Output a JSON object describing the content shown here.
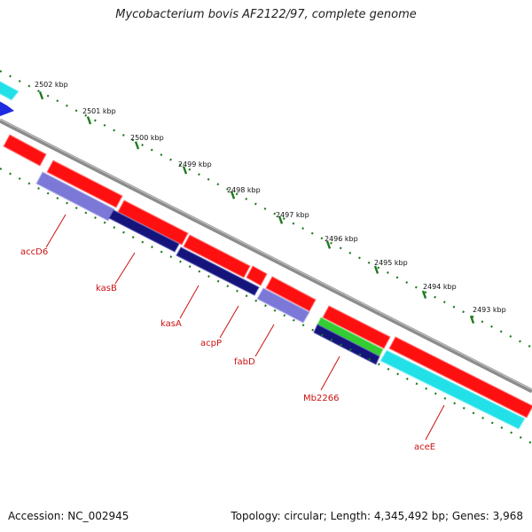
{
  "title": "Mycobacterium bovis AF2122/97, complete genome",
  "footer": {
    "accession": "Accession: NC_002945",
    "stats": "Topology: circular; Length: 4,345,492 bp; Genes: 3,968"
  },
  "colors": {
    "backbone": "#8c8c8c",
    "ticks": "#1e7a1e",
    "label": "#cc1111",
    "red_feature": "#ff1010",
    "cyan_feature": "#22e0e8",
    "periwinkle_feature": "#7b78d8",
    "navy_feature": "#14147a",
    "blue_feature": "#1f2be0",
    "green_feature": "#33cc33"
  },
  "ticks": [
    {
      "label": "2502 kbp"
    },
    {
      "label": "2501 kbp"
    },
    {
      "label": "2500 kbp"
    },
    {
      "label": "2499 kbp"
    },
    {
      "label": "2498 kbp"
    },
    {
      "label": "2497 kbp"
    },
    {
      "label": "2496 kbp"
    },
    {
      "label": "2495 kbp"
    },
    {
      "label": "2494 kbp"
    },
    {
      "label": "2493 kbp"
    }
  ],
  "gene_labels": [
    "accD6",
    "kasB",
    "kasA",
    "acpP",
    "fabD",
    "Mb2266",
    "aceE"
  ]
}
